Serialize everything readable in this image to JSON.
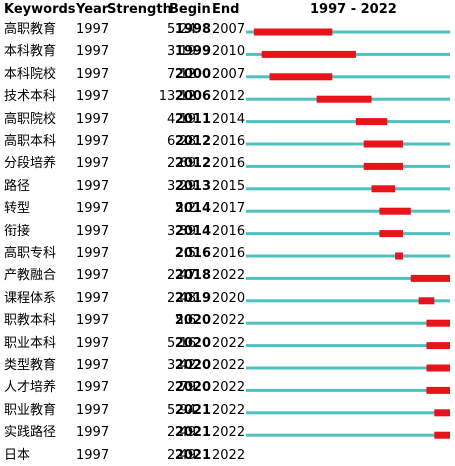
{
  "header": {
    "keywords": "Keywords",
    "year": "Year",
    "strength": "Strength",
    "begin": "Begin",
    "end": "End",
    "range": "1997 - 2022"
  },
  "chart_data": {
    "type": "table",
    "title": "1997 - 2022",
    "timeline": {
      "start": 1997,
      "end": 2022
    },
    "colors": {
      "baseline": "#4fbfbf",
      "burst": "#e8121b"
    },
    "columns": [
      "Keywords",
      "Year",
      "Strength",
      "Begin",
      "End"
    ],
    "rows": [
      {
        "keyword": "高职教育",
        "year": "1997",
        "strength": "5.24",
        "begin": "1998",
        "end": "2007"
      },
      {
        "keyword": "本科教育",
        "year": "1997",
        "strength": "3.19",
        "begin": "1999",
        "end": "2010"
      },
      {
        "keyword": "本科院校",
        "year": "1997",
        "strength": "7.12",
        "begin": "2000",
        "end": "2007"
      },
      {
        "keyword": "技术本科",
        "year": "1997",
        "strength": "13.12",
        "begin": "2006",
        "end": "2012"
      },
      {
        "keyword": "高职院校",
        "year": "1997",
        "strength": "4.19",
        "begin": "2011",
        "end": "2014"
      },
      {
        "keyword": "高职本科",
        "year": "1997",
        "strength": "6.28",
        "begin": "2012",
        "end": "2016"
      },
      {
        "keyword": "分段培养",
        "year": "1997",
        "strength": "2.69",
        "begin": "2012",
        "end": "2016"
      },
      {
        "keyword": "路径",
        "year": "1997",
        "strength": "3.29",
        "begin": "2013",
        "end": "2015"
      },
      {
        "keyword": "转型",
        "year": "1997",
        "strength": "5.2",
        "begin": "2014",
        "end": "2017"
      },
      {
        "keyword": "衔接",
        "year": "1997",
        "strength": "3.39",
        "begin": "2014",
        "end": "2016"
      },
      {
        "keyword": "高职专科",
        "year": "1997",
        "strength": "2.5",
        "begin": "2016",
        "end": "2016"
      },
      {
        "keyword": "产教融合",
        "year": "1997",
        "strength": "2.47",
        "begin": "2018",
        "end": "2022"
      },
      {
        "keyword": "课程体系",
        "year": "1997",
        "strength": "2.48",
        "begin": "2019",
        "end": "2020"
      },
      {
        "keyword": "职教本科",
        "year": "1997",
        "strength": "5.6",
        "begin": "2020",
        "end": "2022"
      },
      {
        "keyword": "职业本科",
        "year": "1997",
        "strength": "5.16",
        "begin": "2020",
        "end": "2022"
      },
      {
        "keyword": "类型教育",
        "year": "1997",
        "strength": "3.42",
        "begin": "2020",
        "end": "2022"
      },
      {
        "keyword": "人才培养",
        "year": "1997",
        "strength": "2.79",
        "begin": "2020",
        "end": "2022"
      },
      {
        "keyword": "职业教育",
        "year": "1997",
        "strength": "5.94",
        "begin": "2021",
        "end": "2022"
      },
      {
        "keyword": "实践路径",
        "year": "1997",
        "strength": "2.49",
        "begin": "2021",
        "end": "2022"
      },
      {
        "keyword": "日本",
        "year": "1997",
        "strength": "2.49",
        "begin": "2021",
        "end": "2022"
      }
    ]
  }
}
